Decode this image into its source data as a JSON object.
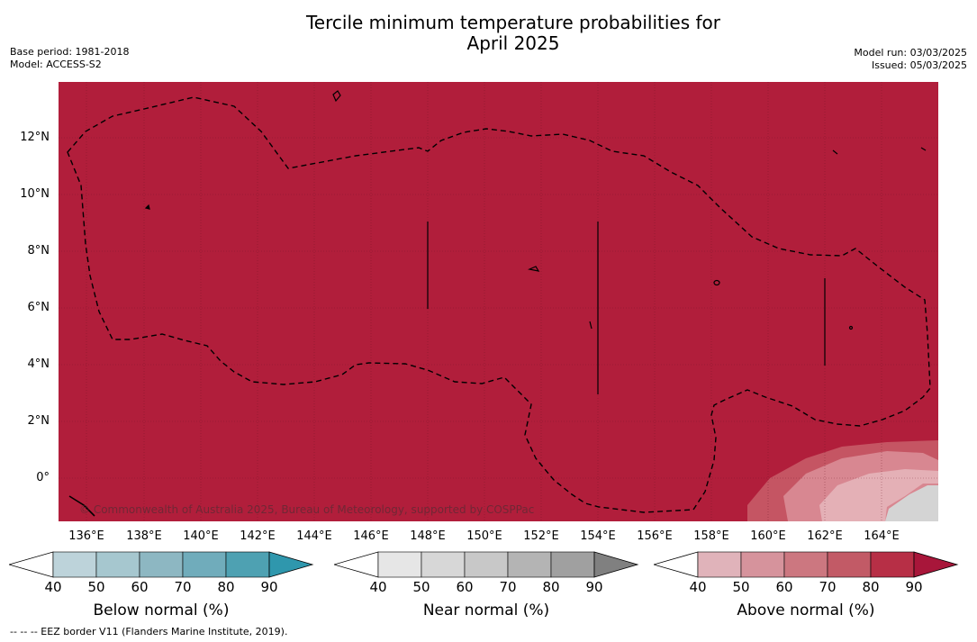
{
  "title_line1": "Tercile minimum temperature probabilities for",
  "title_line2": "April 2025",
  "base_period": "Base period: 1981-2018",
  "model": "Model: ACCESS-S2",
  "model_run": "Model run: 03/03/2025",
  "issued": "Issued: 05/03/2025",
  "copyright": "© Commonwealth of Australia 2025, Bureau of Meteorology, supported by COSPPac",
  "footnote": "--  --  -- EEZ border V11 (Flanders Marine Institute, 2019).",
  "lat_labels": [
    "12°N",
    "10°N",
    "8°N",
    "6°N",
    "4°N",
    "2°N",
    "0°"
  ],
  "lon_labels": [
    "136°E",
    "138°E",
    "140°E",
    "142°E",
    "144°E",
    "146°E",
    "148°E",
    "150°E",
    "152°E",
    "154°E",
    "156°E",
    "158°E",
    "160°E",
    "162°E",
    "164°E"
  ],
  "colors": {
    "map_base": "#b11e3b",
    "below": [
      "#bdd3da",
      "#a6c7cf",
      "#8db7c2",
      "#70acbb",
      "#4ea1b2",
      "#2f97ad"
    ],
    "near": [
      "#e6e6e6",
      "#d7d7d7",
      "#c8c8c8",
      "#b4b4b4",
      "#a0a0a0",
      "#808080"
    ],
    "above": [
      "#e0b3ba",
      "#d6939c",
      "#cc7780",
      "#c25a66",
      "#b72f46",
      "#a8163a"
    ]
  },
  "colorbars": [
    {
      "label": "Below normal (%)",
      "ticks": [
        "40",
        "50",
        "60",
        "70",
        "80",
        "90"
      ]
    },
    {
      "label": "Near normal (%)",
      "ticks": [
        "40",
        "50",
        "60",
        "70",
        "80",
        "90"
      ]
    },
    {
      "label": "Above normal (%)",
      "ticks": [
        "40",
        "50",
        "60",
        "70",
        "80",
        "90"
      ]
    }
  ]
}
